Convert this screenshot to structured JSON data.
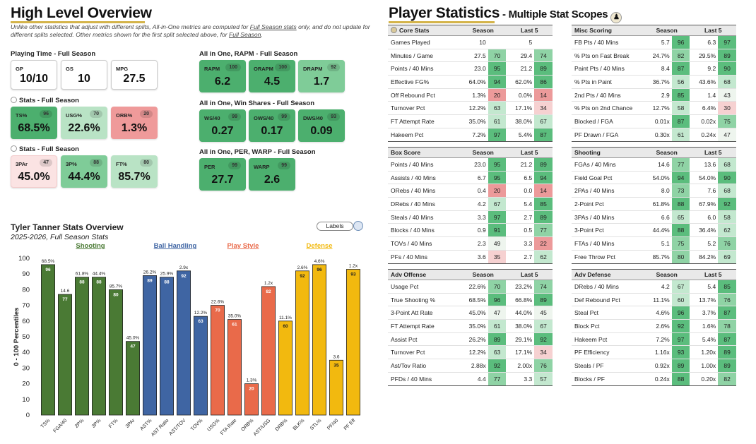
{
  "left": {
    "title": "High Level Overview",
    "note_pre": "Unlike other statistics that adjust with different splits, All-in-One metrics are computed for ",
    "note_link1": "Full Season stats",
    "note_mid": " only, and do not update for different splits selected. Other metrics shown for the first split selected above, for ",
    "note_link2": "Full Season",
    "note_end": ".",
    "sections": {
      "playing_time": "Playing Time - Full Season",
      "stats1": "Stats - Full Season",
      "stats2": "Stats - Full Season",
      "rapm": "All in One, RAPM - Full Season",
      "ws": "All in One, Win Shares - Full Season",
      "per": "All in One, PER, WARP - Full Season"
    },
    "cards": {
      "gp": {
        "label": "GP",
        "value": "10/10"
      },
      "gs": {
        "label": "GS",
        "value": "10"
      },
      "mpg": {
        "label": "MPG",
        "value": "27.5"
      },
      "ts": {
        "label": "TS%",
        "pct": "96",
        "value": "68.5%"
      },
      "usg": {
        "label": "USG%",
        "pct": "70",
        "value": "22.6%"
      },
      "orb": {
        "label": "ORB%",
        "pct": "20",
        "value": "1.3%"
      },
      "par3": {
        "label": "3PAr",
        "pct": "47",
        "value": "45.0%"
      },
      "p3": {
        "label": "3P%",
        "pct": "88",
        "value": "44.4%"
      },
      "ft": {
        "label": "FT%",
        "pct": "80",
        "value": "85.7%"
      },
      "rapm": {
        "label": "RAPM",
        "pct": "100",
        "value": "6.2"
      },
      "orapm": {
        "label": "ORAPM",
        "pct": "100",
        "value": "4.5"
      },
      "drapm": {
        "label": "DRAPM",
        "pct": "92",
        "value": "1.7"
      },
      "ws40": {
        "label": "WS/40",
        "pct": "99",
        "value": "0.27"
      },
      "ows40": {
        "label": "OWS/40",
        "pct": "99",
        "value": "0.17"
      },
      "dws40": {
        "label": "DWS/40",
        "pct": "93",
        "value": "0.09"
      },
      "per": {
        "label": "PER",
        "pct": "99",
        "value": "27.7"
      },
      "warp": {
        "label": "WARP",
        "pct": "99",
        "value": "2.6"
      }
    },
    "chart_title": "Tyler Tanner Stats Overview",
    "chart_subtitle": "2025-2026, Full Season Stats",
    "labels_button": "Labels"
  },
  "chart_data": {
    "type": "bar",
    "ylabel": "0 - 100 Percentiles",
    "ylim": [
      0,
      100
    ],
    "yticks": [
      0,
      10,
      20,
      30,
      40,
      50,
      60,
      70,
      80,
      90,
      100
    ],
    "groups": [
      {
        "name": "Shooting",
        "color": "#4a7a34"
      },
      {
        "name": "Ball Handling",
        "color": "#3f65a3"
      },
      {
        "name": "Play Style",
        "color": "#e96a4a"
      },
      {
        "name": "Defense",
        "color": "#f2b90f"
      }
    ],
    "bars": [
      {
        "cat": "TS%",
        "value": 96,
        "label": "68.5%",
        "group": 0
      },
      {
        "cat": "FGA/40",
        "value": 77,
        "label": "14.6",
        "group": 0
      },
      {
        "cat": "2P%",
        "value": 88,
        "label": "61.8%",
        "group": 0
      },
      {
        "cat": "3P%",
        "value": 88,
        "label": "44.4%",
        "group": 0
      },
      {
        "cat": "FT%",
        "value": 80,
        "label": "85.7%",
        "group": 0
      },
      {
        "cat": "3PAr",
        "value": 47,
        "label": "45.0%",
        "group": 0
      },
      {
        "cat": "AST%",
        "value": 89,
        "label": "26.2%",
        "group": 1
      },
      {
        "cat": "AST Ratio",
        "value": 88,
        "label": "25.9%",
        "group": 1
      },
      {
        "cat": "AST/TOV",
        "value": 92,
        "label": "2.9x",
        "group": 1
      },
      {
        "cat": "TOV%",
        "value": 63,
        "label": "12.2%",
        "group": 1
      },
      {
        "cat": "USG%",
        "value": 70,
        "label": "22.6%",
        "group": 2
      },
      {
        "cat": "FTA Rate",
        "value": 61,
        "label": "35.0%",
        "group": 2
      },
      {
        "cat": "ORB%",
        "value": 20,
        "label": "1.3%",
        "group": 2
      },
      {
        "cat": "AST/USG",
        "value": 82,
        "label": "1.2x",
        "group": 2
      },
      {
        "cat": "DRB%",
        "value": 60,
        "label": "11.1%",
        "group": 3
      },
      {
        "cat": "BLK%",
        "value": 92,
        "label": "2.6%",
        "group": 3
      },
      {
        "cat": "STL%",
        "value": 96,
        "label": "4.6%",
        "group": 3
      },
      {
        "cat": "PF/40",
        "value": 35,
        "label": "3.6",
        "group": 3
      },
      {
        "cat": "PF Eff",
        "value": 93,
        "label": "1.2x",
        "group": 3
      }
    ]
  },
  "right": {
    "title": "Player Statistics",
    "subtitle": " - Multiple Stat Scopes",
    "col_season": "Season",
    "col_last5": "Last 5",
    "tables": [
      {
        "key": "core",
        "title": "Core Stats",
        "icon": true,
        "rows": [
          {
            "name": "Games Played",
            "s": "10",
            "sp": "",
            "l": "5",
            "lp": ""
          },
          {
            "name": "Minutes / Game",
            "s": "27.5",
            "sp": "70",
            "l": "29.4",
            "lp": "74"
          },
          {
            "name": "Points / 40 Mins",
            "s": "23.0",
            "sp": "95",
            "l": "21.2",
            "lp": "89"
          },
          {
            "name": "Effective FG%",
            "s": "64.0%",
            "sp": "94",
            "l": "62.0%",
            "lp": "86"
          },
          {
            "name": "Off Rebound Pct",
            "s": "1.3%",
            "sp": "20",
            "l": "0.0%",
            "lp": "14"
          },
          {
            "name": "Turnover Pct",
            "s": "12.2%",
            "sp": "63",
            "l": "17.1%",
            "lp": "34"
          },
          {
            "name": "FT Attempt Rate",
            "s": "35.0%",
            "sp": "61",
            "l": "38.0%",
            "lp": "67"
          },
          {
            "name": "Hakeem Pct",
            "s": "7.2%",
            "sp": "97",
            "l": "5.4%",
            "lp": "87"
          }
        ]
      },
      {
        "key": "misc",
        "title": "Misc Scoring",
        "icon": false,
        "rows": [
          {
            "name": "FB Pts / 40 Mins",
            "s": "5.7",
            "sp": "96",
            "l": "6.3",
            "lp": "97"
          },
          {
            "name": "% Pts on Fast Break",
            "s": "24.7%",
            "sp": "82",
            "l": "29.5%",
            "lp": "89"
          },
          {
            "name": "Paint Pts / 40 Mins",
            "s": "8.4",
            "sp": "87",
            "l": "9.2",
            "lp": "90"
          },
          {
            "name": "% Pts in Paint",
            "s": "36.7%",
            "sp": "56",
            "l": "43.6%",
            "lp": "68"
          },
          {
            "name": "2nd Pts / 40 Mins",
            "s": "2.9",
            "sp": "85",
            "l": "1.4",
            "lp": "43"
          },
          {
            "name": "% Pts on 2nd Chance",
            "s": "12.7%",
            "sp": "58",
            "l": "6.4%",
            "lp": "30"
          },
          {
            "name": "Blocked / FGA",
            "s": "0.01x",
            "sp": "87",
            "l": "0.02x",
            "lp": "75"
          },
          {
            "name": "PF Drawn / FGA",
            "s": "0.30x",
            "sp": "61",
            "l": "0.24x",
            "lp": "47"
          }
        ]
      },
      {
        "key": "box",
        "title": "Box Score",
        "icon": false,
        "rows": [
          {
            "name": "Points / 40 Mins",
            "s": "23.0",
            "sp": "95",
            "l": "21.2",
            "lp": "89"
          },
          {
            "name": "Assists / 40 Mins",
            "s": "6.7",
            "sp": "95",
            "l": "6.5",
            "lp": "94"
          },
          {
            "name": "ORebs / 40 Mins",
            "s": "0.4",
            "sp": "20",
            "l": "0.0",
            "lp": "14"
          },
          {
            "name": "DRebs / 40 Mins",
            "s": "4.2",
            "sp": "67",
            "l": "5.4",
            "lp": "85"
          },
          {
            "name": "Steals / 40 Mins",
            "s": "3.3",
            "sp": "97",
            "l": "2.7",
            "lp": "89"
          },
          {
            "name": "Blocks / 40 Mins",
            "s": "0.9",
            "sp": "91",
            "l": "0.5",
            "lp": "77"
          },
          {
            "name": "TOVs / 40 Mins",
            "s": "2.3",
            "sp": "49",
            "l": "3.3",
            "lp": "22"
          },
          {
            "name": "PFs / 40 Mins",
            "s": "3.6",
            "sp": "35",
            "l": "2.7",
            "lp": "62"
          }
        ]
      },
      {
        "key": "shooting",
        "title": "Shooting",
        "icon": false,
        "rows": [
          {
            "name": "FGAs / 40 Mins",
            "s": "14.6",
            "sp": "77",
            "l": "13.6",
            "lp": "68"
          },
          {
            "name": "Field Goal Pct",
            "s": "54.0%",
            "sp": "94",
            "l": "54.0%",
            "lp": "90"
          },
          {
            "name": "2PAs / 40 Mins",
            "s": "8.0",
            "sp": "73",
            "l": "7.6",
            "lp": "68"
          },
          {
            "name": "2-Point Pct",
            "s": "61.8%",
            "sp": "88",
            "l": "67.9%",
            "lp": "92"
          },
          {
            "name": "3PAs / 40 Mins",
            "s": "6.6",
            "sp": "65",
            "l": "6.0",
            "lp": "58"
          },
          {
            "name": "3-Point Pct",
            "s": "44.4%",
            "sp": "88",
            "l": "36.4%",
            "lp": "62"
          },
          {
            "name": "FTAs / 40 Mins",
            "s": "5.1",
            "sp": "75",
            "l": "5.2",
            "lp": "76"
          },
          {
            "name": "Free Throw Pct",
            "s": "85.7%",
            "sp": "80",
            "l": "84.2%",
            "lp": "69"
          }
        ]
      },
      {
        "key": "advoff",
        "title": "Adv Offense",
        "icon": false,
        "rows": [
          {
            "name": "Usage Pct",
            "s": "22.6%",
            "sp": "70",
            "l": "23.2%",
            "lp": "74"
          },
          {
            "name": "True Shooting %",
            "s": "68.5%",
            "sp": "96",
            "l": "66.8%",
            "lp": "89"
          },
          {
            "name": "3-Point Att Rate",
            "s": "45.0%",
            "sp": "47",
            "l": "44.0%",
            "lp": "45"
          },
          {
            "name": "FT Attempt Rate",
            "s": "35.0%",
            "sp": "61",
            "l": "38.0%",
            "lp": "67"
          },
          {
            "name": "Assist Pct",
            "s": "26.2%",
            "sp": "89",
            "l": "29.1%",
            "lp": "92"
          },
          {
            "name": "Turnover Pct",
            "s": "12.2%",
            "sp": "63",
            "l": "17.1%",
            "lp": "34"
          },
          {
            "name": "Ast/Tov Ratio",
            "s": "2.88x",
            "sp": "92",
            "l": "2.00x",
            "lp": "76"
          },
          {
            "name": "PFDs / 40 Mins",
            "s": "4.4",
            "sp": "77",
            "l": "3.3",
            "lp": "57"
          }
        ]
      },
      {
        "key": "advdef",
        "title": "Adv Defense",
        "icon": false,
        "rows": [
          {
            "name": "DRebs / 40 Mins",
            "s": "4.2",
            "sp": "67",
            "l": "5.4",
            "lp": "85"
          },
          {
            "name": "Def Rebound Pct",
            "s": "11.1%",
            "sp": "60",
            "l": "13.7%",
            "lp": "76"
          },
          {
            "name": "Steal Pct",
            "s": "4.6%",
            "sp": "96",
            "l": "3.7%",
            "lp": "87"
          },
          {
            "name": "Block Pct",
            "s": "2.6%",
            "sp": "92",
            "l": "1.6%",
            "lp": "78"
          },
          {
            "name": "Hakeem Pct",
            "s": "7.2%",
            "sp": "97",
            "l": "5.4%",
            "lp": "87"
          },
          {
            "name": "PF Efficiency",
            "s": "1.16x",
            "sp": "93",
            "l": "1.20x",
            "lp": "89"
          },
          {
            "name": "Steals / PF",
            "s": "0.92x",
            "sp": "89",
            "l": "1.00x",
            "lp": "89"
          },
          {
            "name": "Blocks / PF",
            "s": "0.24x",
            "sp": "88",
            "l": "0.20x",
            "lp": "82"
          }
        ]
      }
    ]
  }
}
